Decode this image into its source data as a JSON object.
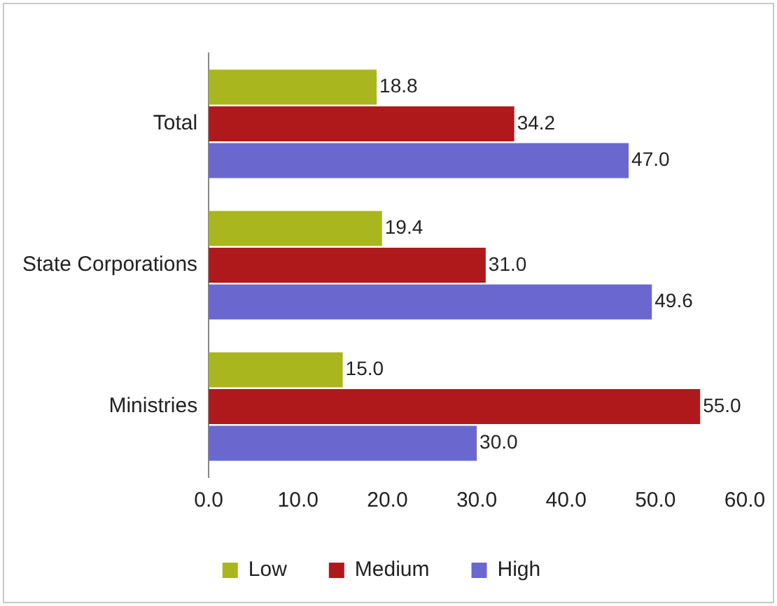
{
  "chart_data": {
    "type": "bar",
    "orientation": "horizontal",
    "categories": [
      "Total",
      "State Corporations",
      "Ministries"
    ],
    "series": [
      {
        "name": "Low",
        "color": "#a9b61e",
        "values": [
          18.8,
          19.4,
          15.0
        ],
        "value_labels": [
          "18.8",
          "19.4",
          "15.0"
        ]
      },
      {
        "name": "Medium",
        "color": "#b0191c",
        "values": [
          34.2,
          31.0,
          55.0
        ],
        "value_labels": [
          "34.2",
          "31.0",
          "55.0"
        ]
      },
      {
        "name": "High",
        "color": "#6a68cf",
        "values": [
          47.0,
          49.6,
          30.0
        ],
        "value_labels": [
          "47.0",
          "49.6",
          "30.0"
        ]
      }
    ],
    "xlim": [
      0,
      60
    ],
    "xticks": [
      {
        "value": 0,
        "label": "0.0"
      },
      {
        "value": 10,
        "label": "10.0"
      },
      {
        "value": 20,
        "label": "20.0"
      },
      {
        "value": 30,
        "label": "30.0"
      },
      {
        "value": 40,
        "label": "40.0"
      },
      {
        "value": 50,
        "label": "50.0"
      },
      {
        "value": 60,
        "label": "60.0"
      }
    ],
    "grid": false,
    "legend": "bottom"
  }
}
